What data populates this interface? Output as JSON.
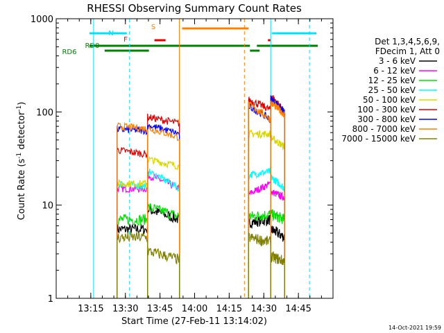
{
  "chart_data": {
    "type": "line",
    "title": "RHESSI Observing Summary Count Rates",
    "xlabel": "Start Time (27-Feb-11 13:14:02)",
    "ylabel_main": "Count Rate (s",
    "ylabel_sup1": "-1",
    "ylabel_mid": " detector",
    "ylabel_sup2": "-1",
    "ylabel_end": ")",
    "timestamp": "14-Oct-2021 19:59",
    "y_scale": "log",
    "ylim": [
      1,
      1000
    ],
    "xlim_minutes": [
      13.0,
      15.0
    ],
    "x_ticks": [
      {
        "t": 13.25,
        "label": "13:15"
      },
      {
        "t": 13.5,
        "label": "13:30"
      },
      {
        "t": 13.75,
        "label": "13:45"
      },
      {
        "t": 14.0,
        "label": "14:00"
      },
      {
        "t": 14.25,
        "label": "14:15"
      },
      {
        "t": 14.5,
        "label": "14:30"
      },
      {
        "t": 14.75,
        "label": "14:45"
      }
    ],
    "y_ticks": [
      {
        "v": 1,
        "label": "1"
      },
      {
        "v": 10,
        "label": "10"
      },
      {
        "v": 100,
        "label": "100"
      },
      {
        "v": 1000,
        "label": "1000"
      }
    ],
    "legend": {
      "placement": "right",
      "header1": "Det 1,3,4,5,6,9,",
      "header2": "FDecim 1, Att 0",
      "entries": [
        {
          "name": "3 - 6 keV",
          "color": "#000000"
        },
        {
          "name": "6 - 12 keV",
          "color": "#ff00ff"
        },
        {
          "name": "12 - 25 keV",
          "color": "#00e000"
        },
        {
          "name": "25 - 50 keV",
          "color": "#00ffff"
        },
        {
          "name": "50 - 100 keV",
          "color": "#d8d800"
        },
        {
          "name": "100 - 300 keV",
          "color": "#e00000"
        },
        {
          "name": "300 - 800 keV",
          "color": "#0000ff"
        },
        {
          "name": "800 - 7000 keV",
          "color": "#ff8000"
        },
        {
          "name": "7000 - 15000 keV",
          "color": "#808000"
        }
      ]
    },
    "flags": [
      {
        "label": "N",
        "color": "#00e0ff",
        "level": 1,
        "segments": [
          [
            13.24,
            13.51
          ],
          [
            14.56,
            14.88
          ]
        ]
      },
      {
        "label": "F",
        "color": "#e00000",
        "level": 2,
        "segments": [
          [
            13.71,
            13.79
          ],
          [
            14.53,
            14.55
          ]
        ]
      },
      {
        "label": "S",
        "color": "#ff8000",
        "level": 0,
        "segments": [
          [
            13.91,
            14.39
          ]
        ]
      },
      {
        "label": "RD0",
        "color": "#008000",
        "level": 3,
        "segments": [
          [
            13.24,
            14.4
          ],
          [
            14.45,
            14.89
          ]
        ]
      },
      {
        "label": "RD6",
        "color": "#008000",
        "level": 4,
        "segments": [
          [
            13.35,
            13.67
          ],
          [
            14.4,
            14.47
          ]
        ]
      }
    ],
    "vlines": [
      {
        "t": 13.27,
        "color": "#00e0ff",
        "style": "solid"
      },
      {
        "t": 13.53,
        "color": "#00e0ff",
        "style": "dashed"
      },
      {
        "t": 13.89,
        "color": "#ff8000",
        "style": "solid"
      },
      {
        "t": 14.36,
        "color": "#ff8000",
        "style": "dashed"
      },
      {
        "t": 14.55,
        "color": "#00e0ff",
        "style": "solid"
      },
      {
        "t": 14.83,
        "color": "#00e0ff",
        "style": "dashed"
      }
    ],
    "segments": [
      [
        13.44,
        13.66
      ],
      [
        13.66,
        13.89
      ],
      [
        14.39,
        14.55
      ],
      [
        14.55,
        14.65
      ]
    ],
    "series": [
      {
        "name": "3 - 6 keV",
        "color": "#000000",
        "levels": [
          [
            5.5,
            5.5
          ],
          [
            9,
            7
          ],
          [
            6.5,
            7
          ],
          [
            5.5,
            4.5
          ]
        ]
      },
      {
        "name": "6 - 12 keV",
        "color": "#ff00ff",
        "levels": [
          [
            15,
            15
          ],
          [
            21,
            15
          ],
          [
            13,
            17
          ],
          [
            14,
            12
          ]
        ]
      },
      {
        "name": "12 - 25 keV",
        "color": "#00e000",
        "levels": [
          [
            7,
            7
          ],
          [
            9.5,
            7.5
          ],
          [
            7.5,
            8
          ],
          [
            8,
            7
          ]
        ]
      },
      {
        "name": "25 - 50 keV",
        "color": "#00ffff",
        "levels": [
          [
            17,
            16
          ],
          [
            23,
            15
          ],
          [
            21,
            23
          ],
          [
            20,
            15
          ]
        ]
      },
      {
        "name": "50 - 100 keV",
        "color": "#d8d800",
        "levels": [
          [
            17,
            17
          ],
          [
            31,
            26
          ],
          [
            58,
            58
          ],
          [
            53,
            42
          ]
        ]
      },
      {
        "name": "100 - 300 keV",
        "color": "#e00000",
        "levels": [
          [
            39,
            35
          ],
          [
            88,
            75
          ],
          [
            135,
            105
          ],
          [
            150,
            98
          ]
        ]
      },
      {
        "name": "300 - 800 keV",
        "color": "#0000ff",
        "levels": [
          [
            65,
            63
          ],
          [
            72,
            58
          ],
          [
            115,
            82
          ],
          [
            140,
            98
          ]
        ]
      },
      {
        "name": "800 - 7000 keV",
        "color": "#ff8000",
        "levels": [
          [
            70,
            66
          ],
          [
            67,
            53
          ],
          [
            120,
            82
          ],
          [
            125,
            93
          ]
        ]
      },
      {
        "name": "7000 - 15000 keV",
        "color": "#808000",
        "levels": [
          [
            4.5,
            4.5
          ],
          [
            3.2,
            2.6
          ],
          [
            4.5,
            4
          ],
          [
            2.8,
            2.5
          ]
        ]
      }
    ]
  }
}
